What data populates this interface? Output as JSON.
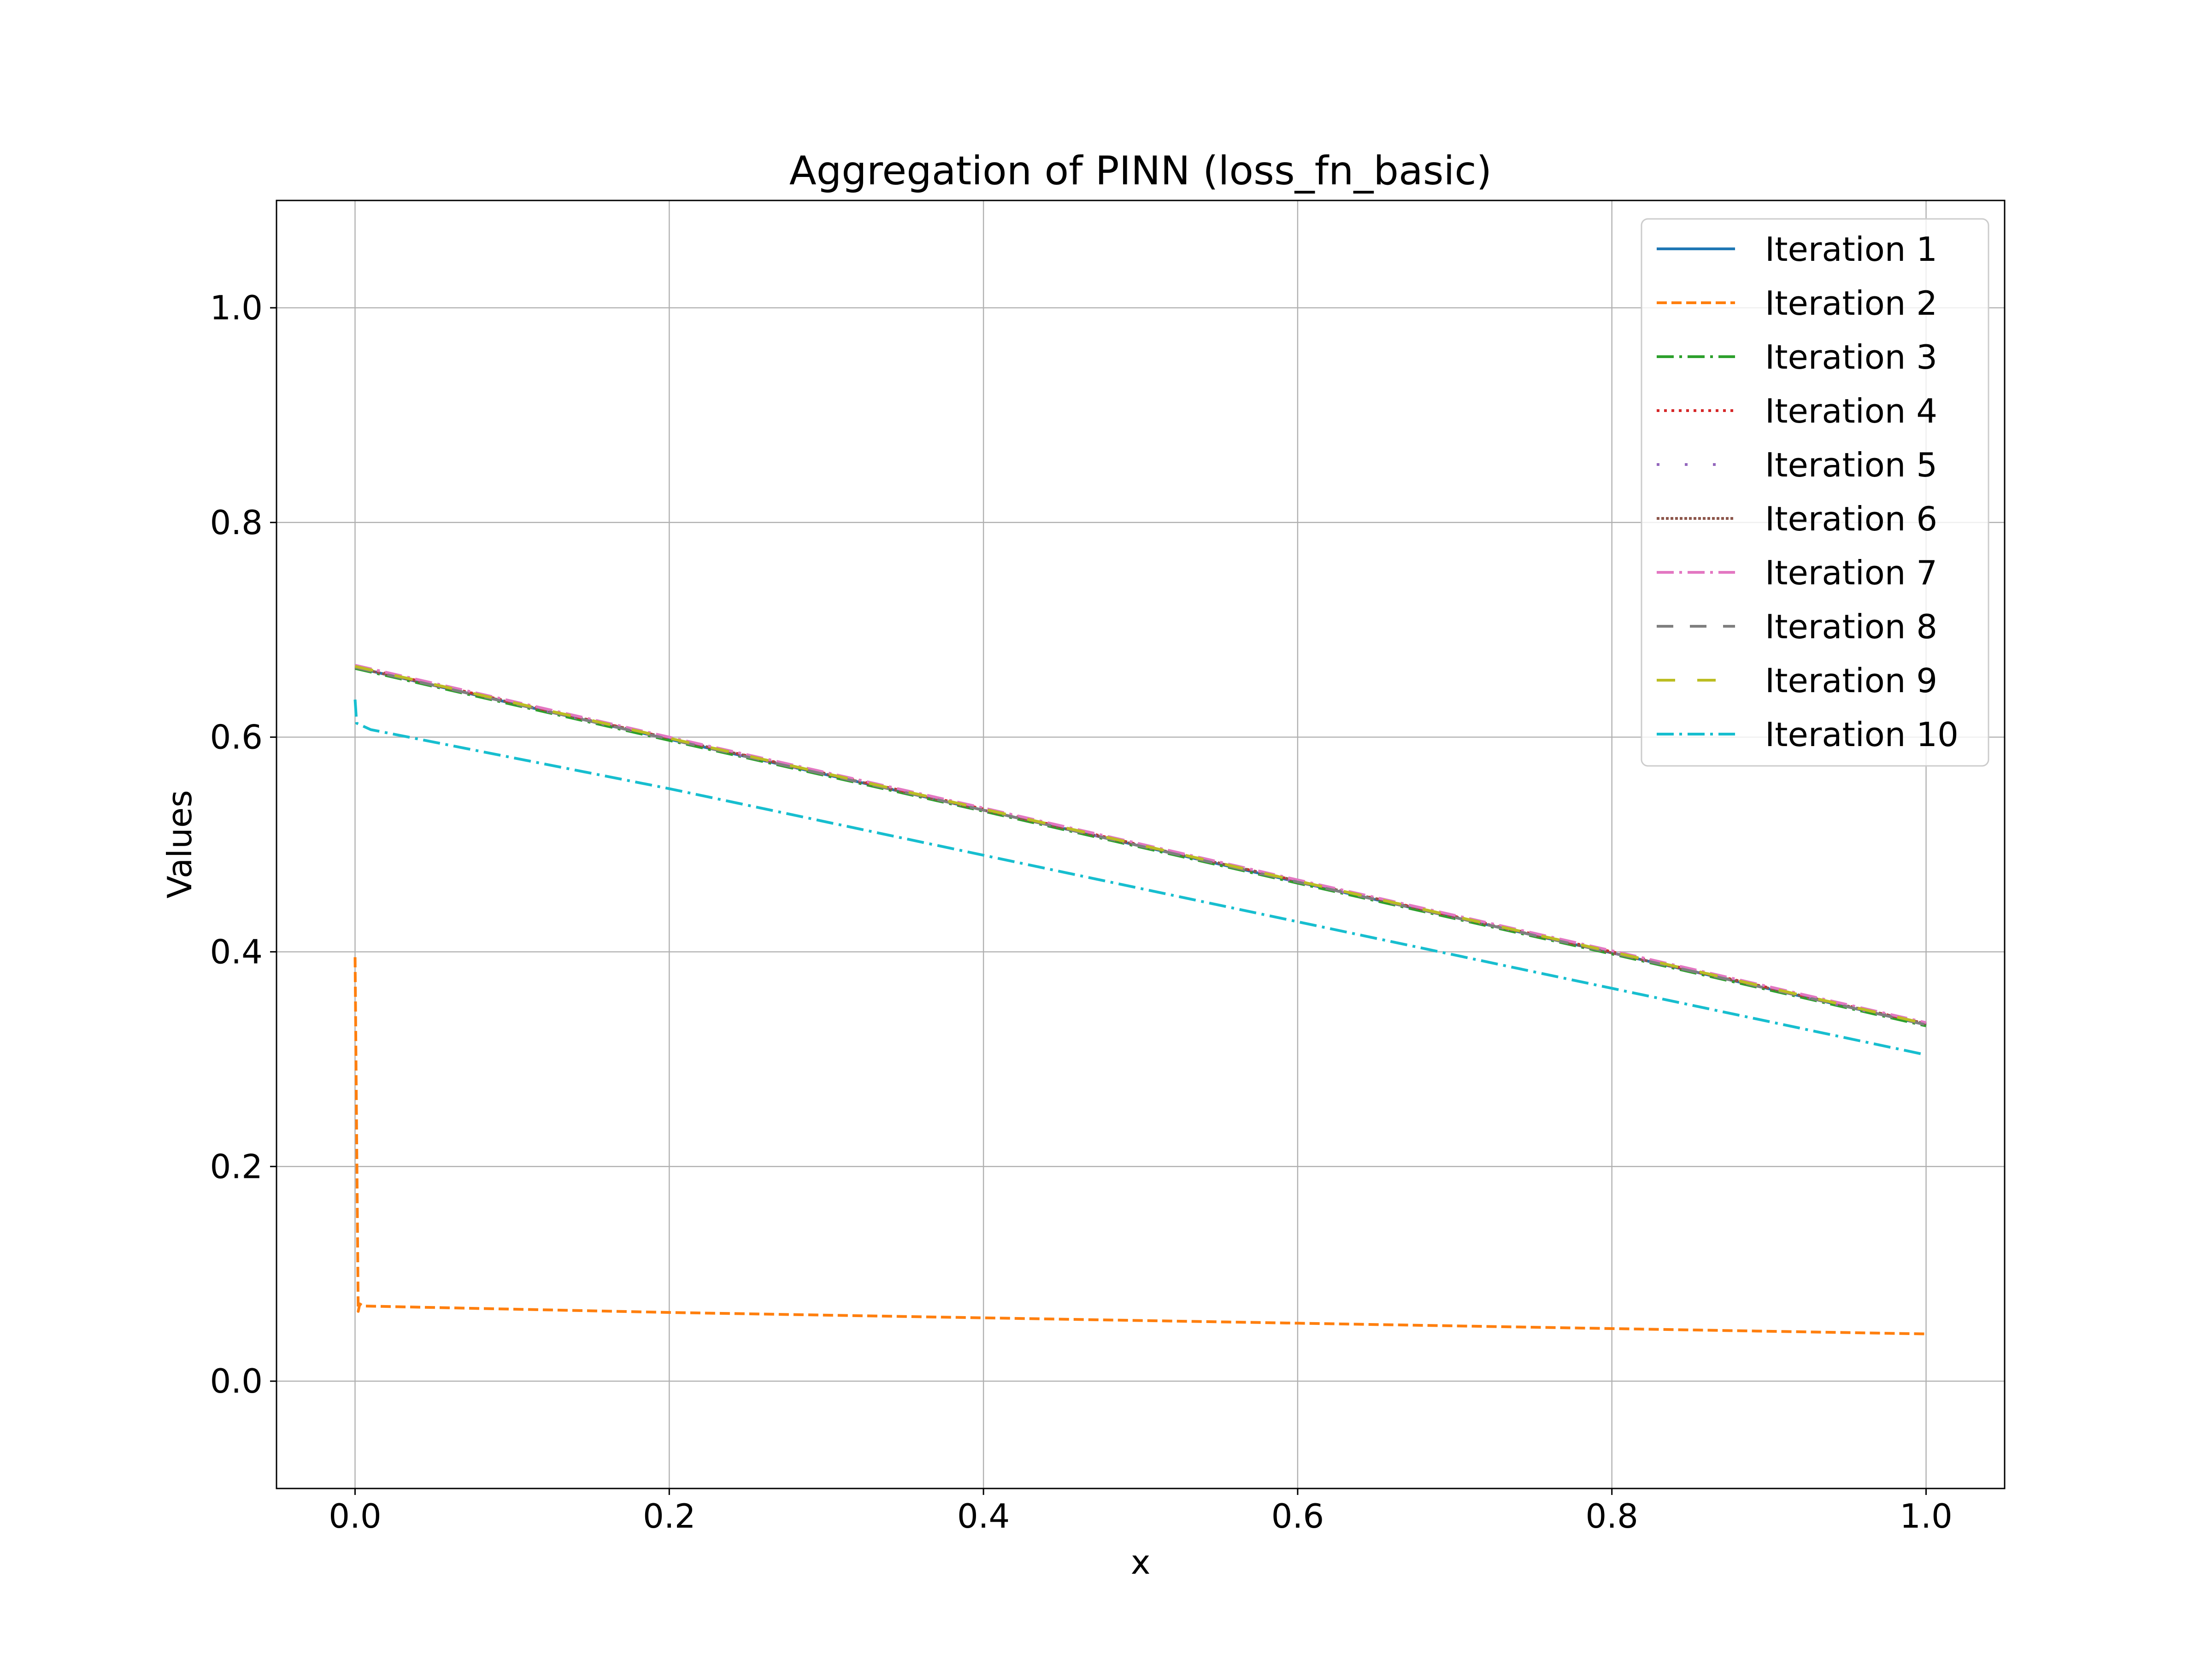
{
  "chart_data": {
    "type": "line",
    "title": "Aggregation of PINN (loss_fn_basic)",
    "xlabel": "x",
    "ylabel": "Values",
    "xlim": [
      -0.05,
      1.05
    ],
    "ylim": [
      -0.1,
      1.1
    ],
    "xticks": [
      "0.0",
      "0.2",
      "0.4",
      "0.6",
      "0.8",
      "1.0"
    ],
    "yticks": [
      "0.0",
      "0.2",
      "0.4",
      "0.6",
      "0.8",
      "1.0"
    ],
    "grid": true,
    "legend_position": "top-right",
    "series": [
      {
        "name": "Iteration 1",
        "color": "#1f77b4",
        "style": "solid",
        "x": [
          0,
          0.2,
          0.4,
          0.6,
          0.8,
          1.0
        ],
        "y": [
          0.665,
          0.598,
          0.532,
          0.465,
          0.399,
          0.332
        ]
      },
      {
        "name": "Iteration 2",
        "color": "#ff7f0e",
        "style": "dashed",
        "x": [
          0,
          0.002,
          0.003,
          0.005,
          0.2,
          0.4,
          0.6,
          0.8,
          1.0
        ],
        "y": [
          0.395,
          0.065,
          0.072,
          0.07,
          0.064,
          0.059,
          0.054,
          0.049,
          0.044
        ]
      },
      {
        "name": "Iteration 3",
        "color": "#2ca02c",
        "style": "dashdot",
        "x": [
          0,
          0.2,
          0.4,
          0.6,
          0.8,
          1.0
        ],
        "y": [
          0.664,
          0.597,
          0.531,
          0.464,
          0.398,
          0.331
        ]
      },
      {
        "name": "Iteration 4",
        "color": "#d62728",
        "style": "dotted",
        "x": [
          0,
          0.2,
          0.4,
          0.6,
          0.8,
          1.0
        ],
        "y": [
          0.666,
          0.599,
          0.533,
          0.466,
          0.4,
          0.333
        ]
      },
      {
        "name": "Iteration 5",
        "color": "#9467bd",
        "style": "loosedot",
        "x": [
          0,
          0.2,
          0.4,
          0.6,
          0.8,
          1.0
        ],
        "y": [
          0.665,
          0.598,
          0.532,
          0.465,
          0.399,
          0.332
        ]
      },
      {
        "name": "Iteration 6",
        "color": "#8c564b",
        "style": "densedot",
        "x": [
          0,
          0.2,
          0.4,
          0.6,
          0.8,
          1.0
        ],
        "y": [
          0.665,
          0.599,
          0.532,
          0.466,
          0.399,
          0.333
        ]
      },
      {
        "name": "Iteration 7",
        "color": "#e377c2",
        "style": "dashdot2",
        "x": [
          0,
          0.2,
          0.4,
          0.6,
          0.8,
          1.0
        ],
        "y": [
          0.667,
          0.6,
          0.534,
          0.467,
          0.401,
          0.334
        ]
      },
      {
        "name": "Iteration 8",
        "color": "#7f7f7f",
        "style": "longdash",
        "x": [
          0,
          0.2,
          0.4,
          0.6,
          0.8,
          1.0
        ],
        "y": [
          0.665,
          0.598,
          0.532,
          0.465,
          0.399,
          0.332
        ]
      },
      {
        "name": "Iteration 9",
        "color": "#bcbd22",
        "style": "longdash2",
        "x": [
          0,
          0.2,
          0.4,
          0.6,
          0.8,
          1.0
        ],
        "y": [
          0.666,
          0.599,
          0.533,
          0.466,
          0.4,
          0.333
        ]
      },
      {
        "name": "Iteration 10",
        "color": "#17becf",
        "style": "dashdot",
        "x": [
          0,
          0.001,
          0.01,
          0.2,
          0.4,
          0.6,
          0.8,
          1.0
        ],
        "y": [
          0.635,
          0.613,
          0.607,
          0.552,
          0.49,
          0.428,
          0.366,
          0.304
        ]
      }
    ]
  }
}
